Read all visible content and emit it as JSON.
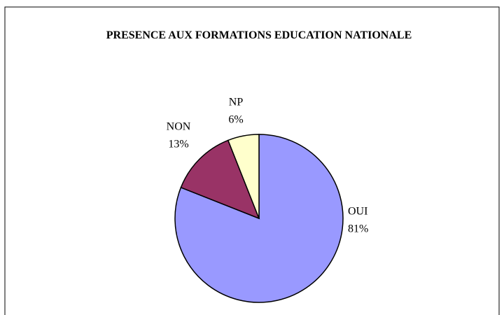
{
  "chart_data": {
    "type": "pie",
    "title": "PRESENCE AUX FORMATIONS EDUCATION NATIONALE",
    "categories": [
      "OUI",
      "NON",
      "NP"
    ],
    "values": [
      81,
      13,
      6
    ],
    "value_labels": [
      "81%",
      "13%",
      "6%"
    ],
    "colors": [
      "#9999ff",
      "#993366",
      "#ffffcc"
    ]
  }
}
